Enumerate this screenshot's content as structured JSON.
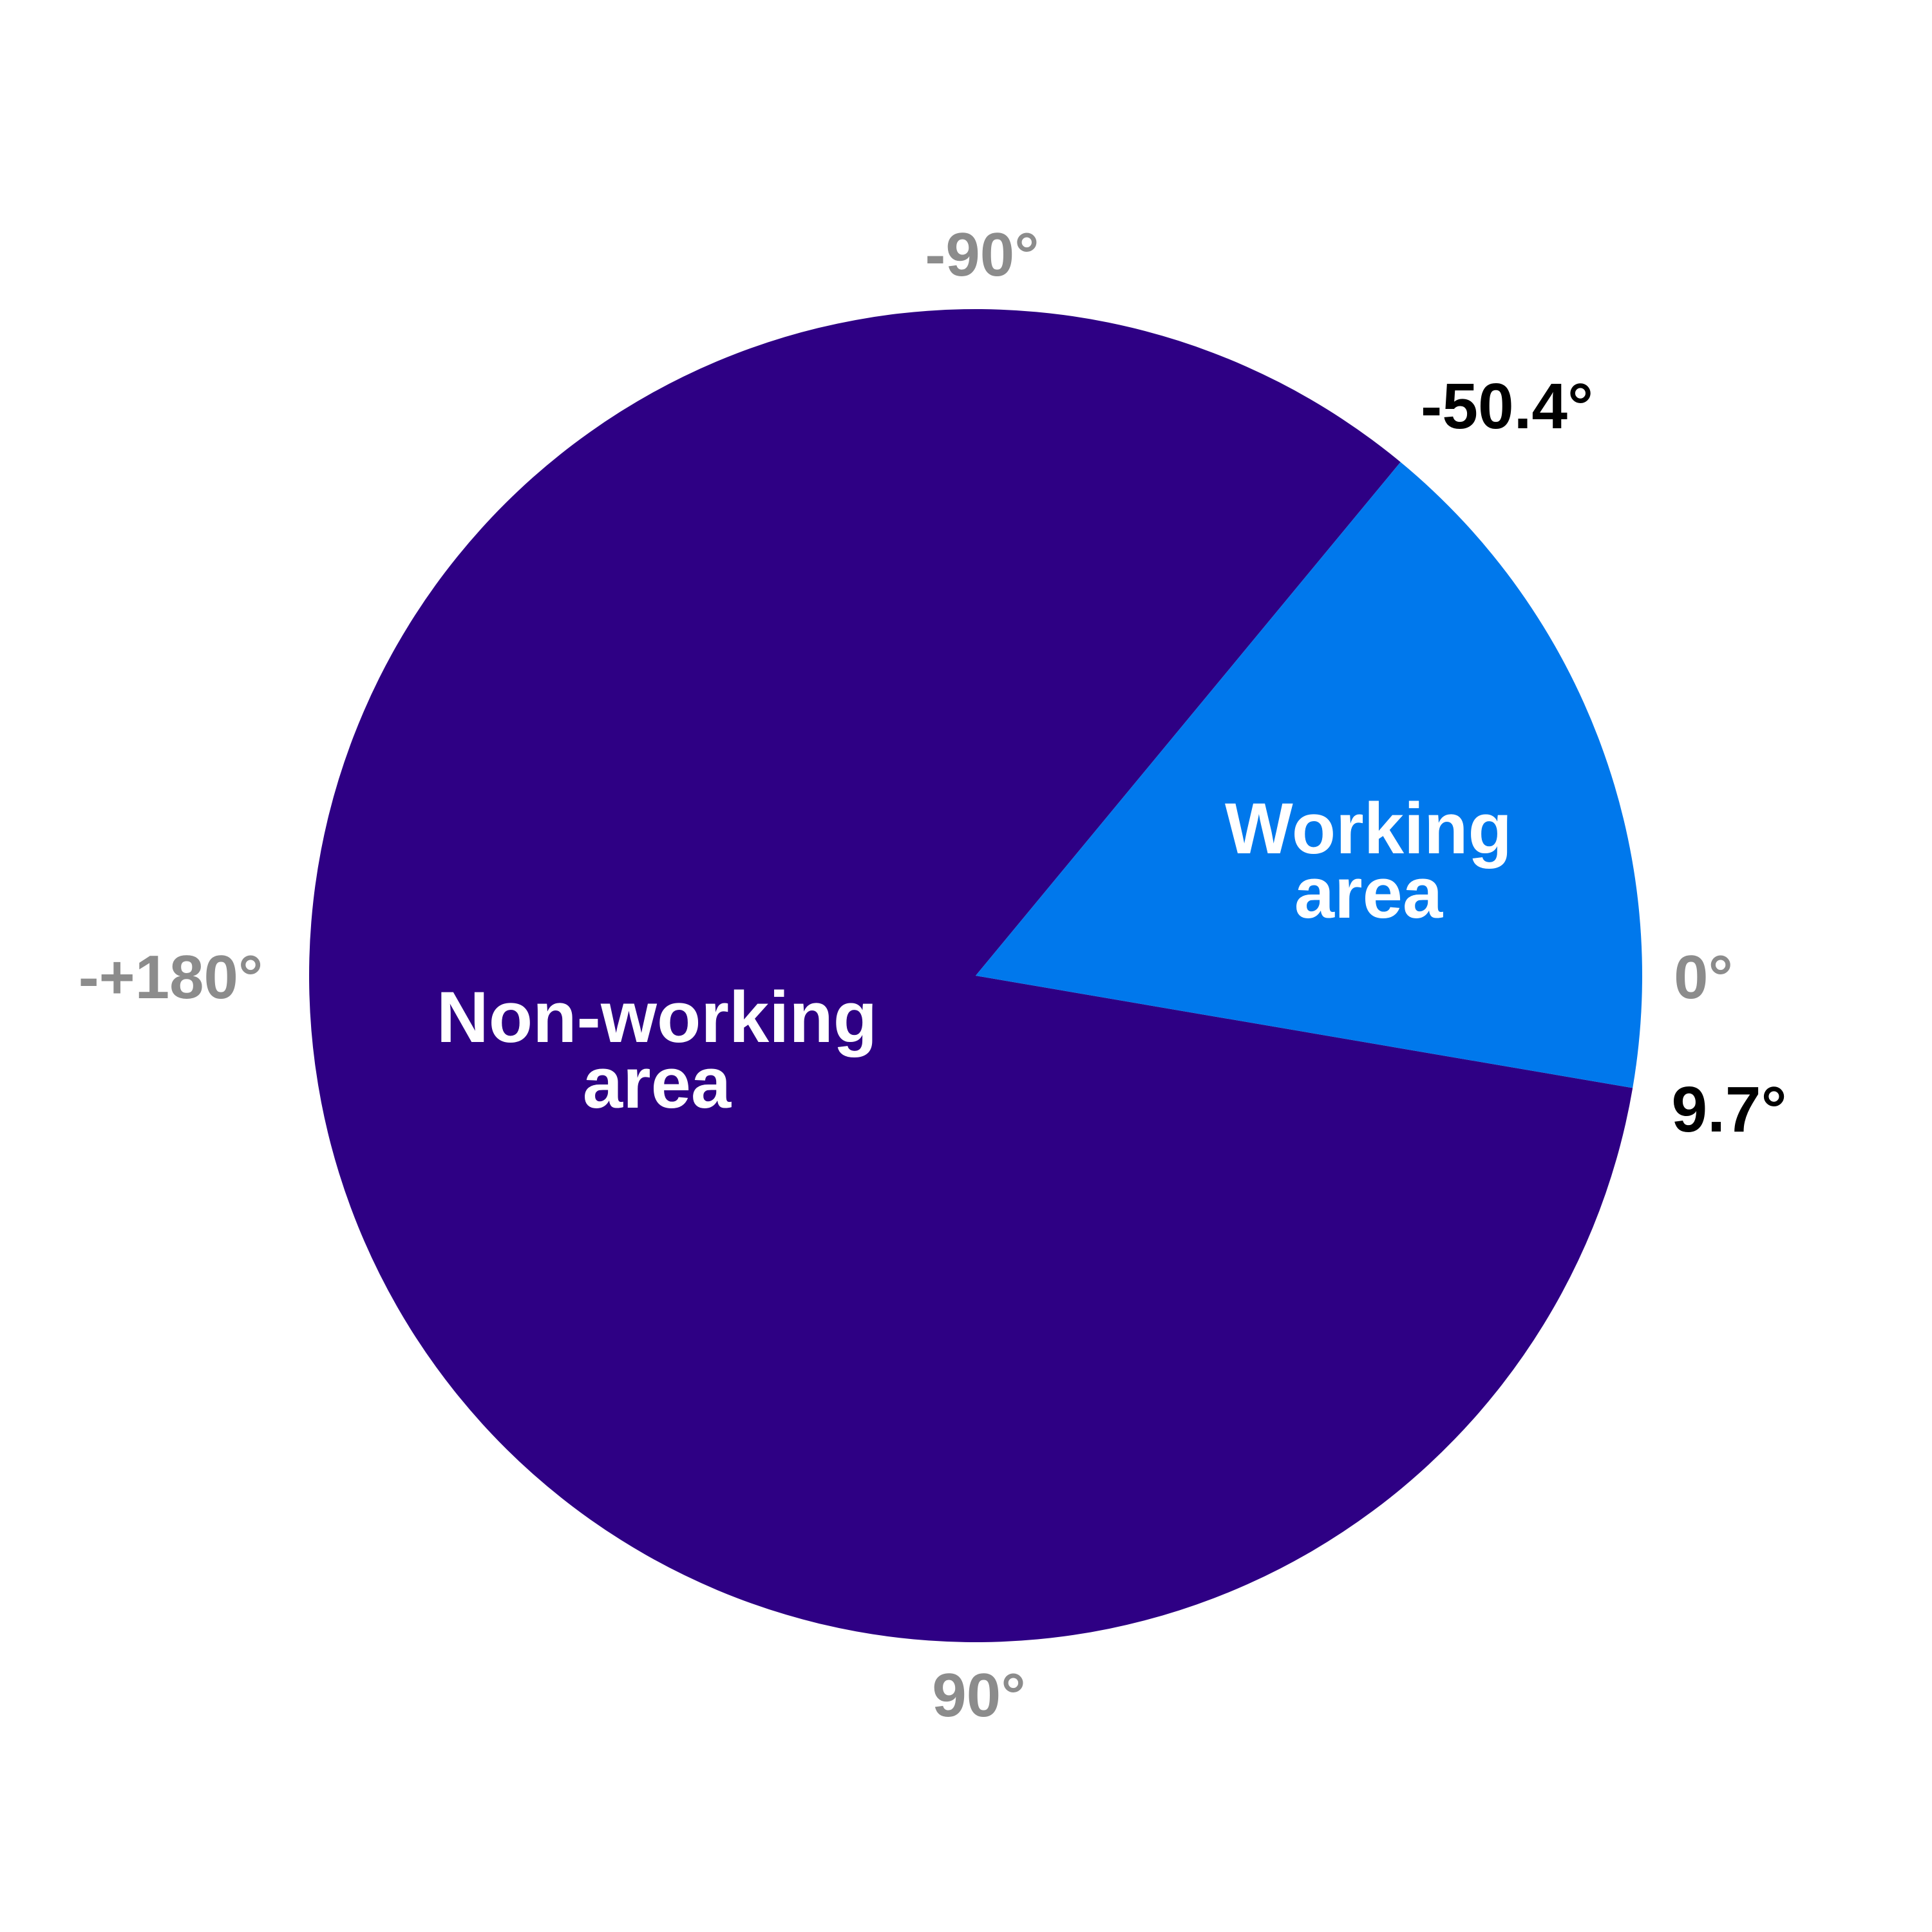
{
  "chart_data": {
    "type": "pie",
    "angle_convention": "degrees, 0 at right, increasing clockwise",
    "slices": [
      {
        "name": "Non-working area",
        "label_lines": [
          "Non-working",
          "area"
        ],
        "start_deg": 9.7,
        "end_deg": 309.6,
        "color": "#2e0084"
      },
      {
        "name": "Working area",
        "label_lines": [
          "Working",
          "area"
        ],
        "start_deg": -50.4,
        "end_deg": 9.7,
        "color": "#0078ec"
      }
    ],
    "reference_angles": [
      {
        "label": "-90°",
        "angle_deg": -90
      },
      {
        "label": "0°",
        "angle_deg": 0
      },
      {
        "label": "90°",
        "angle_deg": 90
      },
      {
        "label": "-+180°",
        "angle_deg": 180
      }
    ],
    "boundary_angles": [
      {
        "label": "-50.4°",
        "angle_deg": -50.4
      },
      {
        "label": "9.7°",
        "angle_deg": 9.7
      }
    ],
    "colors": {
      "reference_label": "#8c8c8c",
      "boundary_label": "#000000",
      "slice_label": "#ffffff"
    }
  }
}
